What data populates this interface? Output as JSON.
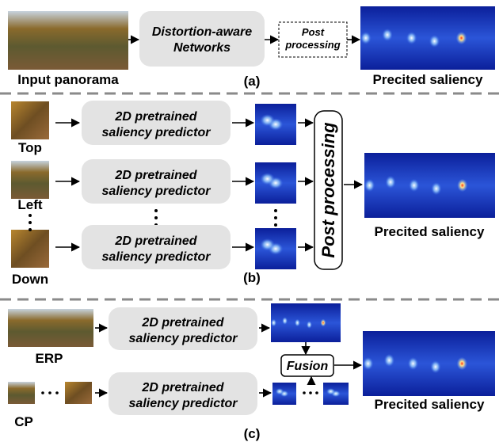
{
  "panel_a": {
    "label": "(a)",
    "input_label": "Input panorama",
    "network": [
      "Distortion-aware",
      "Networks"
    ],
    "post": [
      "Post",
      "processing"
    ],
    "output_label": "Precited saliency"
  },
  "panel_b": {
    "label": "(b)",
    "views": [
      {
        "label": "Top",
        "predictor": [
          "2D pretrained",
          "saliency predictor"
        ]
      },
      {
        "label": "Left",
        "predictor": [
          "2D pretrained",
          "saliency predictor"
        ]
      },
      {
        "label": "Down",
        "predictor": [
          "2D pretrained",
          "saliency predictor"
        ]
      }
    ],
    "post": "Post processing",
    "output_label": "Precited saliency"
  },
  "panel_c": {
    "label": "(c)",
    "erp_label": "ERP",
    "cp_label": "CP",
    "erp_predictor": [
      "2D pretrained",
      "saliency predictor"
    ],
    "cp_predictor": [
      "2D pretrained",
      "saliency predictor"
    ],
    "fusion": "Fusion",
    "output_label": "Precited saliency"
  }
}
